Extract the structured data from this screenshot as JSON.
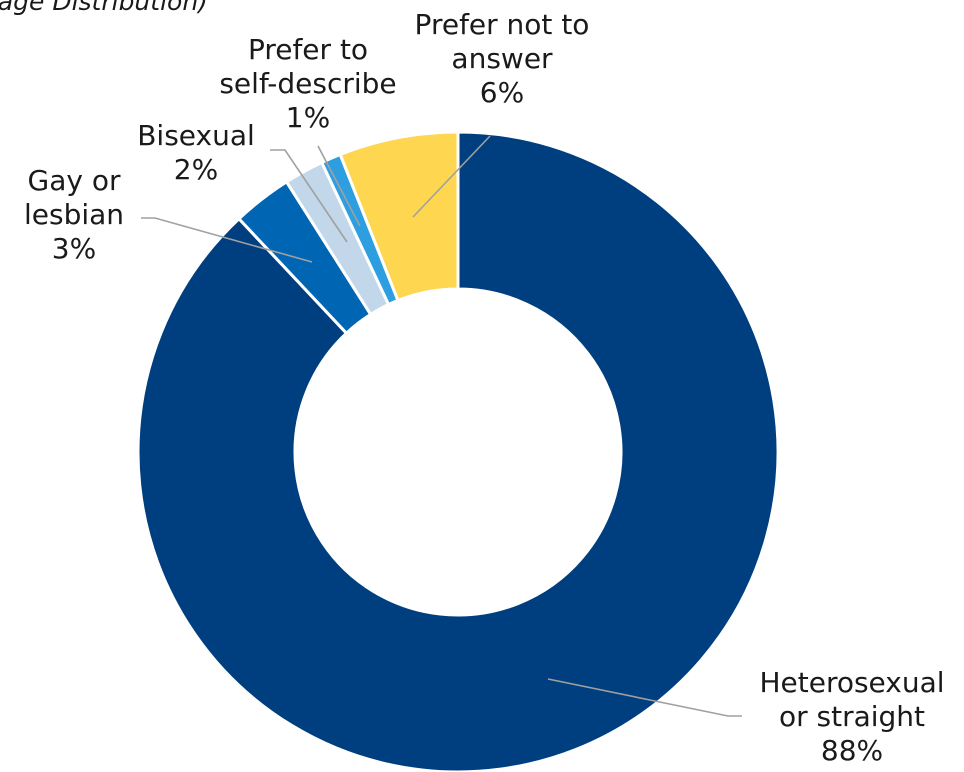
{
  "chart_data": {
    "type": "pie",
    "variant": "donut",
    "subtitle": "tage Distribution)",
    "slices": [
      {
        "label_lines": [
          "Heterosexual",
          "or straight"
        ],
        "value": 88,
        "value_label": "88%",
        "color": "#003f7f"
      },
      {
        "label_lines": [
          "Gay or",
          "lesbian"
        ],
        "value": 3,
        "value_label": "3%",
        "color": "#0066b3"
      },
      {
        "label_lines": [
          "Bisexual"
        ],
        "value": 2,
        "value_label": "2%",
        "color": "#c2d8ea"
      },
      {
        "label_lines": [
          "Prefer to",
          "self-describe"
        ],
        "value": 1,
        "value_label": "1%",
        "color": "#2d9ee0"
      },
      {
        "label_lines": [
          "Prefer not to",
          "answer"
        ],
        "value": 6,
        "value_label": "6%",
        "color": "#ffd64f"
      }
    ],
    "legend": "none",
    "labels": "outside-with-leader-lines"
  }
}
